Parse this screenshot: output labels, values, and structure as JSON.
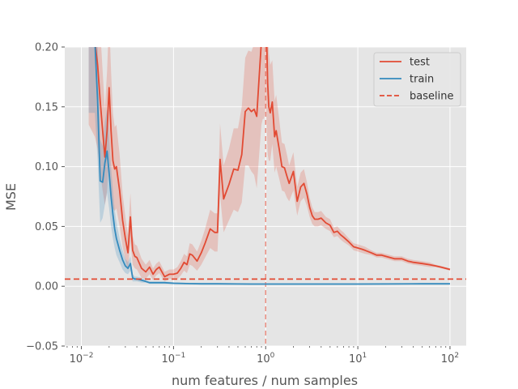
{
  "colors": {
    "test": "#E24A33",
    "train": "#348ABD",
    "baseline": "#E24A33",
    "plot_bg": "#E5E5E5",
    "grid": "#FFFFFF"
  },
  "chart_data": {
    "type": "line",
    "title": "",
    "xlabel": "num features / num samples",
    "ylabel": "MSE",
    "xscale": "log",
    "xlim": [
      0.0066,
      150
    ],
    "ylim": [
      -0.05,
      0.2
    ],
    "grid": true,
    "legend_position": "top-right",
    "x_ticks": [
      0.01,
      0.1,
      1,
      10,
      100
    ],
    "x_tick_labels": [
      {
        "base": "10",
        "exp": "−2"
      },
      {
        "base": "10",
        "exp": "−1"
      },
      {
        "base": "10",
        "exp": "0"
      },
      {
        "base": "10",
        "exp": "1"
      },
      {
        "base": "10",
        "exp": "2"
      }
    ],
    "y_ticks": [
      -0.05,
      0.0,
      0.05,
      0.1,
      0.15,
      0.2
    ],
    "y_tick_labels": [
      "−0.05",
      "0.00",
      "0.05",
      "0.10",
      "0.15",
      "0.20"
    ],
    "baseline": {
      "name": "baseline",
      "y": 0.006
    },
    "vline": {
      "x": 1.0
    },
    "series": [
      {
        "name": "test",
        "x": [
          0.012,
          0.014,
          0.015,
          0.016,
          0.017,
          0.018,
          0.019,
          0.02,
          0.021,
          0.022,
          0.023,
          0.024,
          0.026,
          0.028,
          0.03,
          0.032,
          0.034,
          0.036,
          0.038,
          0.04,
          0.045,
          0.05,
          0.055,
          0.06,
          0.065,
          0.07,
          0.08,
          0.09,
          0.1,
          0.11,
          0.12,
          0.13,
          0.14,
          0.15,
          0.16,
          0.18,
          0.2,
          0.22,
          0.25,
          0.28,
          0.3,
          0.32,
          0.35,
          0.4,
          0.45,
          0.5,
          0.55,
          0.6,
          0.65,
          0.7,
          0.75,
          0.8,
          0.85,
          0.9,
          0.93,
          0.96,
          0.98,
          1.0,
          1.02,
          1.05,
          1.08,
          1.12,
          1.18,
          1.25,
          1.3,
          1.4,
          1.5,
          1.6,
          1.7,
          1.8,
          2.0,
          2.2,
          2.4,
          2.6,
          2.8,
          3.0,
          3.2,
          3.4,
          3.7,
          4.0,
          4.5,
          5.0,
          5.5,
          6.0,
          6.5,
          7.0,
          8.0,
          9.0,
          10,
          11,
          12,
          14,
          16,
          18,
          20,
          25,
          30,
          35,
          40,
          50,
          60,
          70,
          80,
          100
        ],
        "y": [
          0.215,
          0.205,
          0.185,
          0.155,
          0.13,
          0.108,
          0.13,
          0.166,
          0.13,
          0.105,
          0.098,
          0.1,
          0.08,
          0.055,
          0.04,
          0.028,
          0.058,
          0.03,
          0.025,
          0.024,
          0.015,
          0.012,
          0.016,
          0.01,
          0.014,
          0.016,
          0.008,
          0.01,
          0.01,
          0.011,
          0.015,
          0.02,
          0.018,
          0.027,
          0.026,
          0.021,
          0.028,
          0.036,
          0.048,
          0.045,
          0.045,
          0.106,
          0.073,
          0.085,
          0.098,
          0.097,
          0.11,
          0.146,
          0.149,
          0.146,
          0.148,
          0.142,
          0.175,
          0.205,
          0.215,
          0.22,
          0.225,
          0.23,
          0.215,
          0.17,
          0.15,
          0.145,
          0.154,
          0.125,
          0.13,
          0.115,
          0.1,
          0.099,
          0.092,
          0.086,
          0.096,
          0.071,
          0.083,
          0.086,
          0.077,
          0.066,
          0.059,
          0.056,
          0.056,
          0.057,
          0.053,
          0.051,
          0.045,
          0.046,
          0.043,
          0.041,
          0.037,
          0.033,
          0.032,
          0.031,
          0.03,
          0.028,
          0.026,
          0.026,
          0.025,
          0.023,
          0.023,
          0.021,
          0.02,
          0.019,
          0.018,
          0.017,
          0.016,
          0.014
        ],
        "band_half_width": [
          0.08,
          0.08,
          0.07,
          0.06,
          0.05,
          0.04,
          0.05,
          0.06,
          0.05,
          0.04,
          0.035,
          0.035,
          0.03,
          0.022,
          0.018,
          0.015,
          0.02,
          0.012,
          0.01,
          0.01,
          0.008,
          0.006,
          0.006,
          0.005,
          0.005,
          0.005,
          0.004,
          0.004,
          0.004,
          0.005,
          0.006,
          0.007,
          0.007,
          0.009,
          0.009,
          0.008,
          0.01,
          0.012,
          0.016,
          0.016,
          0.016,
          0.03,
          0.028,
          0.03,
          0.034,
          0.035,
          0.04,
          0.045,
          0.048,
          0.05,
          0.055,
          0.06,
          0.065,
          0.07,
          0.075,
          0.08,
          0.08,
          0.08,
          0.075,
          0.06,
          0.045,
          0.04,
          0.035,
          0.03,
          0.03,
          0.025,
          0.02,
          0.02,
          0.018,
          0.015,
          0.016,
          0.012,
          0.012,
          0.012,
          0.01,
          0.008,
          0.007,
          0.006,
          0.006,
          0.006,
          0.005,
          0.005,
          0.004,
          0.004,
          0.004,
          0.004,
          0.003,
          0.003,
          0.003,
          0.003,
          0.003,
          0.002,
          0.002,
          0.002,
          0.002,
          0.002,
          0.002,
          0.002,
          0.002,
          0.002,
          0.002,
          0.001,
          0.001,
          0.001
        ]
      },
      {
        "name": "train",
        "x": [
          0.012,
          0.014,
          0.015,
          0.016,
          0.017,
          0.018,
          0.019,
          0.02,
          0.021,
          0.022,
          0.023,
          0.024,
          0.026,
          0.028,
          0.03,
          0.032,
          0.034,
          0.036,
          0.038,
          0.04,
          0.045,
          0.05,
          0.055,
          0.06,
          0.07,
          0.08,
          0.1,
          0.15,
          0.2,
          0.3,
          0.5,
          0.7,
          1.0,
          1.5,
          2,
          3,
          5,
          10,
          20,
          50,
          100
        ],
        "y": [
          0.215,
          0.205,
          0.155,
          0.088,
          0.087,
          0.103,
          0.113,
          0.095,
          0.075,
          0.06,
          0.048,
          0.04,
          0.03,
          0.022,
          0.017,
          0.015,
          0.019,
          0.007,
          0.006,
          0.006,
          0.005,
          0.004,
          0.003,
          0.003,
          0.003,
          0.003,
          0.0025,
          0.0022,
          0.002,
          0.002,
          0.0019,
          0.0018,
          0.0018,
          0.0018,
          0.0018,
          0.0018,
          0.0018,
          0.0018,
          0.0019,
          0.002,
          0.002
        ],
        "band_half_width": [
          0.07,
          0.06,
          0.05,
          0.035,
          0.03,
          0.035,
          0.035,
          0.03,
          0.025,
          0.02,
          0.016,
          0.014,
          0.01,
          0.008,
          0.006,
          0.005,
          0.006,
          0.003,
          0.002,
          0.002,
          0.002,
          0.001,
          0.001,
          0.001,
          0.001,
          0.001,
          0.0008,
          0.0006,
          0.0005,
          0.0005,
          0.0005,
          0.0005,
          0.0005,
          0.0005,
          0.0005,
          0.0005,
          0.0005,
          0.0005,
          0.0005,
          0.0005,
          0.0005
        ]
      }
    ]
  }
}
